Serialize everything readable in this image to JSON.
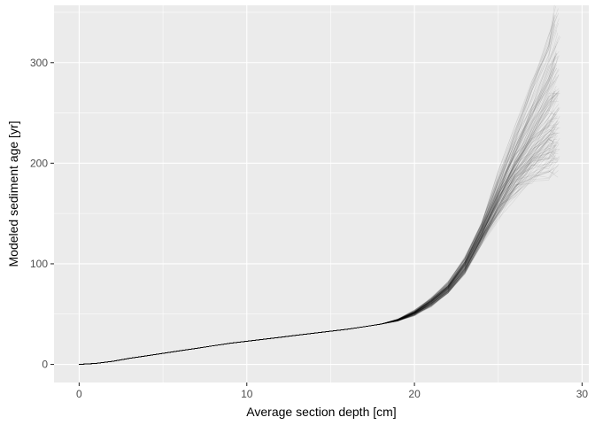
{
  "chart_data": {
    "type": "line",
    "title": "",
    "xlabel": "Average section depth [cm]",
    "ylabel": "Modeled sediment age [yr]",
    "xlim": [
      -1.5,
      30.4
    ],
    "ylim": [
      -18,
      357
    ],
    "x_ticks": [
      0,
      10,
      20,
      30
    ],
    "x_tick_labels": [
      "0",
      "10",
      "20",
      "30"
    ],
    "y_ticks": [
      0,
      100,
      200,
      300
    ],
    "y_tick_labels": [
      "0",
      "100",
      "200",
      "300"
    ],
    "grid": true,
    "legend": "none",
    "panel_color": "#ebebeb",
    "grid_color": "#ffffff",
    "line_color": "#000000",
    "ensemble_members": 150,
    "depth": [
      0.0,
      1.0,
      2.0,
      3.0,
      4.0,
      5.0,
      6.0,
      7.0,
      8.0,
      9.0,
      10.0,
      11.0,
      12.0,
      13.0,
      14.0,
      15.0,
      16.0,
      17.0,
      18.0,
      19.0,
      20.0,
      21.0,
      22.0,
      23.0,
      24.0,
      25.0,
      26.0,
      27.0,
      28.0,
      28.5
    ],
    "median_age": [
      0,
      1,
      3,
      6,
      8.5,
      11,
      13.5,
      16,
      18.5,
      21,
      23,
      25,
      27,
      29,
      31,
      33,
      35,
      37.5,
      40,
      44,
      51,
      62,
      76,
      98,
      130,
      165,
      195,
      220,
      242,
      250
    ],
    "age_low": [
      0,
      1,
      3,
      6,
      8.5,
      11,
      13.5,
      16,
      18.5,
      21,
      23,
      25,
      27,
      29,
      31,
      33,
      35,
      37.5,
      40,
      43,
      49,
      58,
      71,
      90,
      120,
      150,
      170,
      183,
      190,
      193
    ],
    "age_high": [
      0,
      1,
      3,
      6,
      8.5,
      11,
      13.5,
      16,
      18.5,
      21,
      23,
      25,
      27,
      29,
      31,
      33,
      35,
      37.5,
      40,
      45,
      53,
      66,
      81,
      106,
      140,
      185,
      230,
      275,
      320,
      350
    ]
  }
}
